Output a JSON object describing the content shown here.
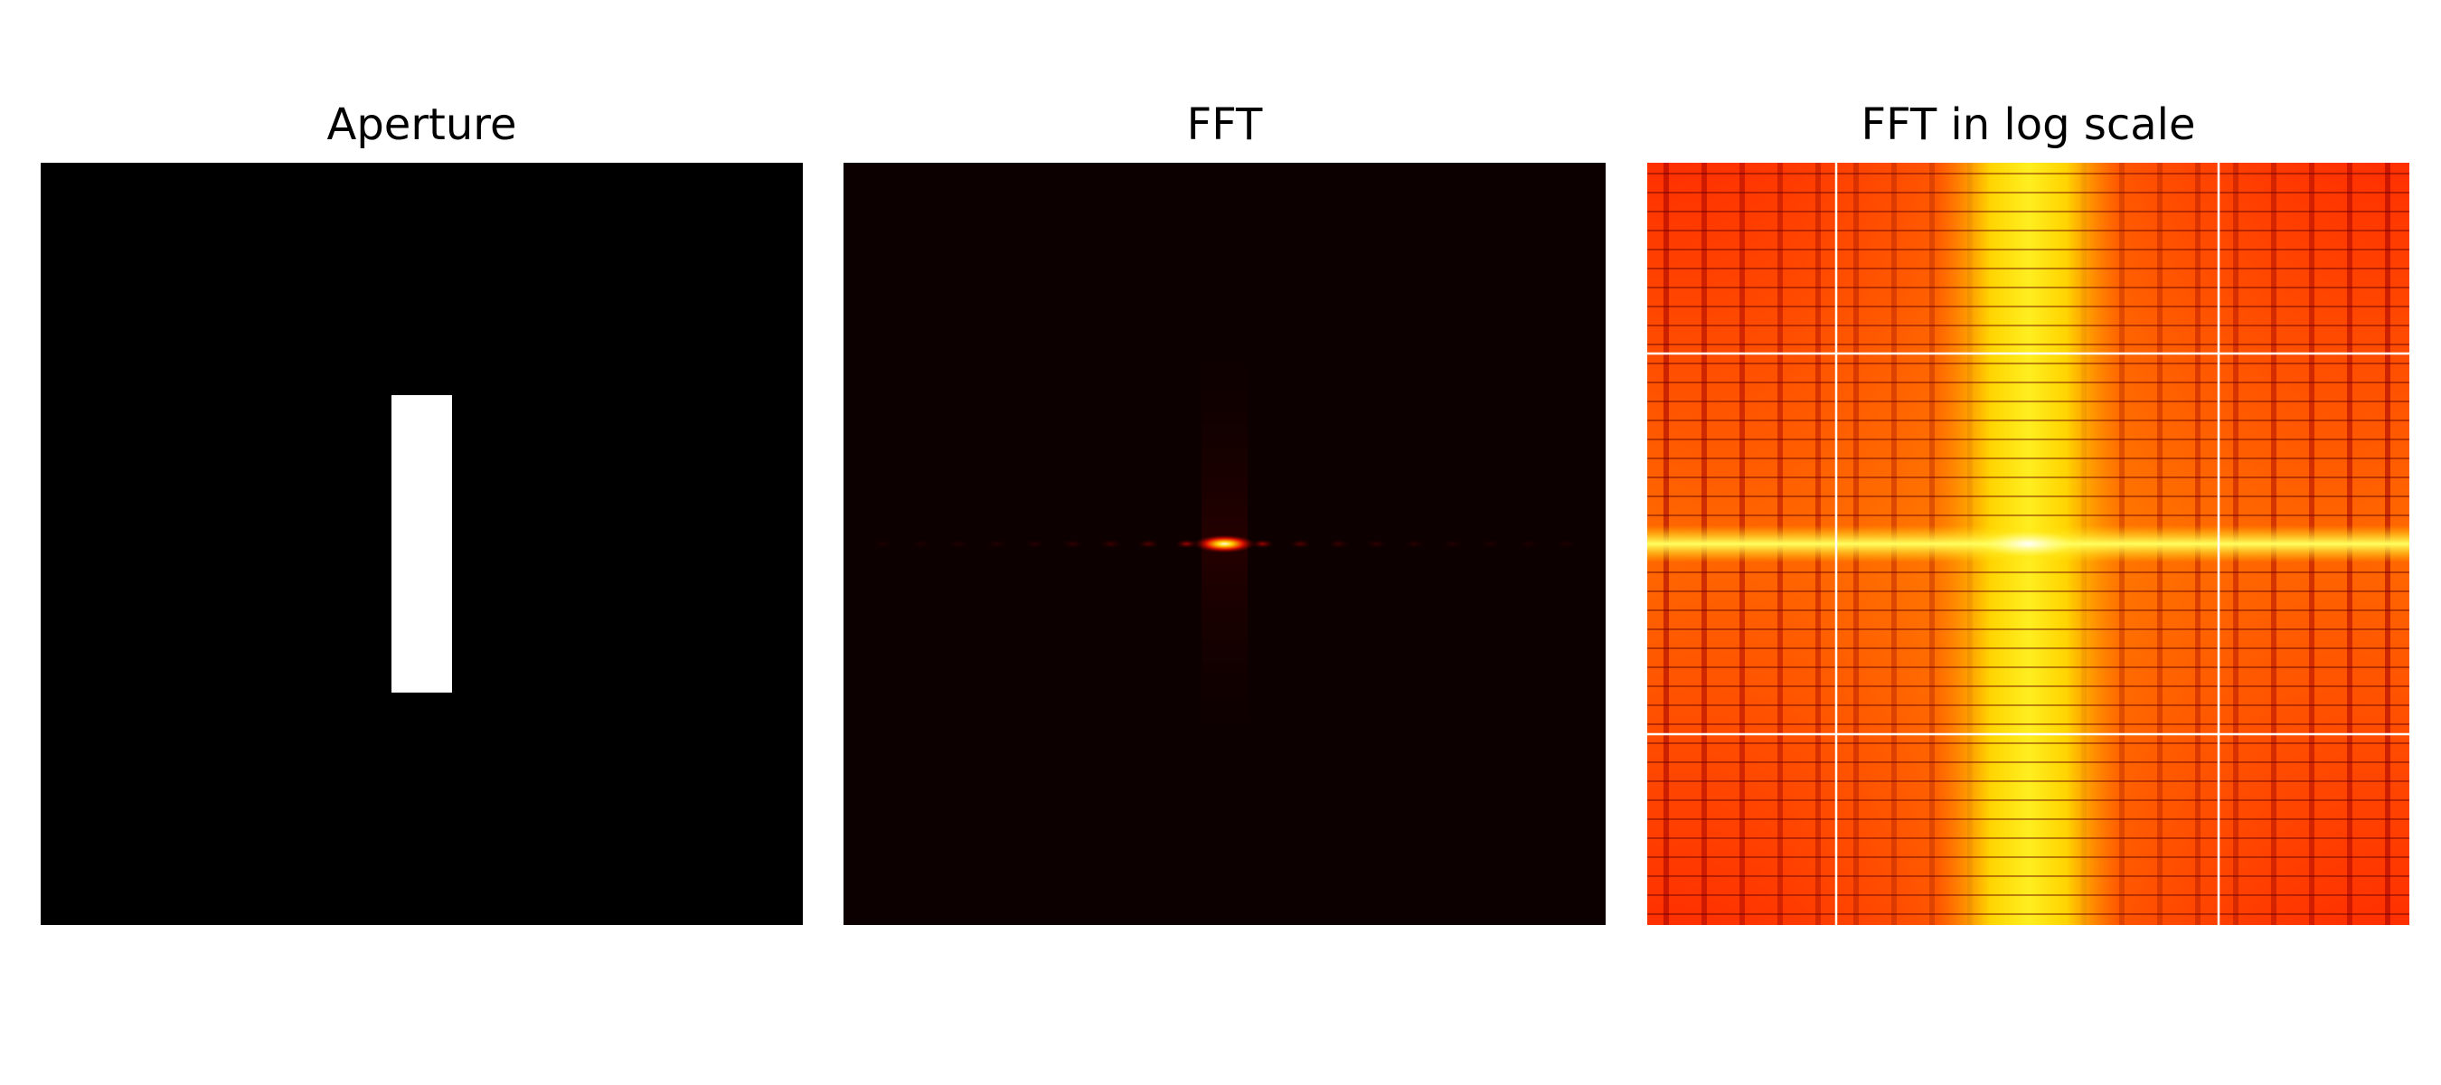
{
  "figure": {
    "panels": [
      {
        "title": "Aperture"
      },
      {
        "title": "FFT"
      },
      {
        "title": "FFT in log scale"
      }
    ]
  },
  "chart_data": [
    {
      "type": "heatmap",
      "title": "Aperture",
      "colormap": "gray",
      "grid": false,
      "axes_visible": false,
      "aperture": {
        "shape": "rectangle",
        "width_fraction": 0.08,
        "height_fraction": 0.39,
        "center": [
          0.5,
          0.5
        ]
      }
    },
    {
      "type": "heatmap",
      "title": "FFT",
      "colormap": "hot",
      "grid": false,
      "axes_visible": false,
      "pattern": "sinc-squared diffraction: bright central lobe with fading side lobes along the horizontal axis"
    },
    {
      "type": "heatmap",
      "title": "FFT in log scale",
      "colormap": "hot",
      "grid": true,
      "axes_visible": false,
      "pattern": "log-scaled sinc diffraction: bright vertical band at center, bright horizontal line, periodic vertical and horizontal minima"
    }
  ]
}
